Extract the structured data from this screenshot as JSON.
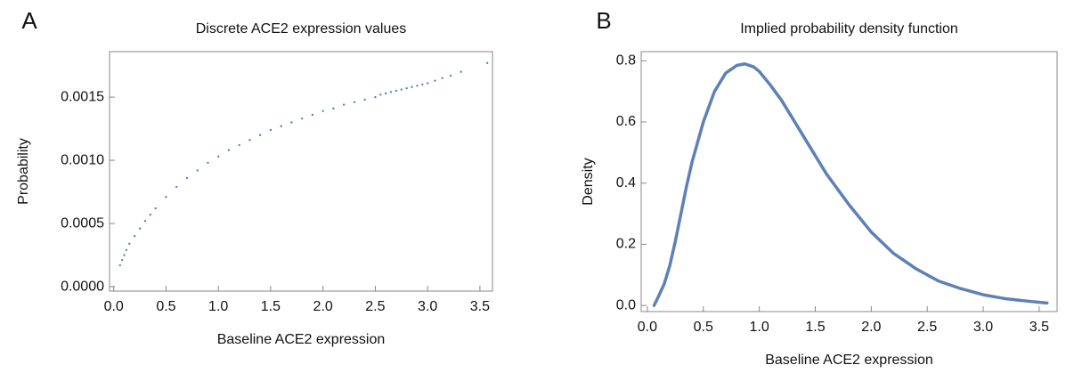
{
  "chart_data": [
    {
      "type": "scatter",
      "panel": "A",
      "title": "Discrete ACE2 expression values",
      "x_label": "Baseline ACE2 expression",
      "y_label": "Probability",
      "color": "#5e81b5",
      "x": [
        0.06,
        0.08,
        0.1,
        0.12,
        0.15,
        0.2,
        0.25,
        0.3,
        0.35,
        0.4,
        0.5,
        0.6,
        0.7,
        0.8,
        0.9,
        1.0,
        1.1,
        1.2,
        1.3,
        1.4,
        1.5,
        1.6,
        1.7,
        1.8,
        1.9,
        2.0,
        2.1,
        2.2,
        2.3,
        2.4,
        2.5,
        2.55,
        2.6,
        2.65,
        2.7,
        2.75,
        2.8,
        2.85,
        2.9,
        2.95,
        3.0,
        3.07,
        3.14,
        3.22,
        3.32,
        3.57
      ],
      "values": [
        0.00017,
        0.00021,
        0.00025,
        0.00029,
        0.00034,
        0.0004,
        0.00046,
        0.00052,
        0.00057,
        0.00062,
        0.00071,
        0.00079,
        0.00086,
        0.00092,
        0.00098,
        0.00103,
        0.00108,
        0.00112,
        0.00116,
        0.0012,
        0.00124,
        0.00127,
        0.0013,
        0.00133,
        0.00136,
        0.00139,
        0.00141,
        0.00144,
        0.00146,
        0.00148,
        0.0015,
        0.00152,
        0.00153,
        0.00154,
        0.00155,
        0.00156,
        0.00157,
        0.00158,
        0.00159,
        0.0016,
        0.00161,
        0.00163,
        0.00165,
        0.00167,
        0.0017,
        0.00177
      ],
      "xlim": [
        -0.04,
        3.62
      ],
      "ylim": [
        -3.5e-05,
        0.00186
      ],
      "xticks": [
        {
          "value": 0,
          "label": "0.0"
        },
        0.5,
        {
          "value": 1,
          "label": "1.0"
        },
        1.5,
        {
          "value": 2,
          "label": "2.0"
        },
        2.5,
        {
          "value": 3,
          "label": "3.0"
        },
        3.5
      ],
      "yticks": [
        {
          "value": 0,
          "label": "0.0000"
        },
        0.0005,
        {
          "value": 0.001,
          "label": "0.0010"
        },
        0.0015
      ]
    },
    {
      "type": "line",
      "panel": "B",
      "title": "Implied probability density function",
      "x_label": "Baseline ACE2 expression",
      "y_label": "Density",
      "color": "#5e81b5",
      "x": [
        0.06,
        0.1,
        0.15,
        0.2,
        0.25,
        0.3,
        0.35,
        0.4,
        0.5,
        0.6,
        0.7,
        0.8,
        0.87,
        0.95,
        1.0,
        1.1,
        1.2,
        1.3,
        1.4,
        1.5,
        1.6,
        1.8,
        2.0,
        2.2,
        2.4,
        2.6,
        2.8,
        3.0,
        3.2,
        3.4,
        3.57
      ],
      "values": [
        0.0,
        0.03,
        0.07,
        0.13,
        0.21,
        0.3,
        0.39,
        0.47,
        0.6,
        0.7,
        0.76,
        0.785,
        0.79,
        0.78,
        0.765,
        0.72,
        0.67,
        0.61,
        0.55,
        0.49,
        0.43,
        0.33,
        0.24,
        0.17,
        0.12,
        0.08,
        0.055,
        0.035,
        0.022,
        0.014,
        0.008
      ],
      "xlim": [
        -0.055,
        3.66
      ],
      "ylim": [
        -0.02,
        0.83
      ],
      "xticks": [
        {
          "value": 0,
          "label": "0.0"
        },
        0.5,
        {
          "value": 1,
          "label": "1.0"
        },
        1.5,
        {
          "value": 2,
          "label": "2.0"
        },
        2.5,
        {
          "value": 3,
          "label": "3.0"
        },
        3.5
      ],
      "yticks": [
        {
          "value": 0,
          "label": "0.0"
        },
        0.2,
        0.4,
        0.6,
        0.8
      ]
    }
  ]
}
